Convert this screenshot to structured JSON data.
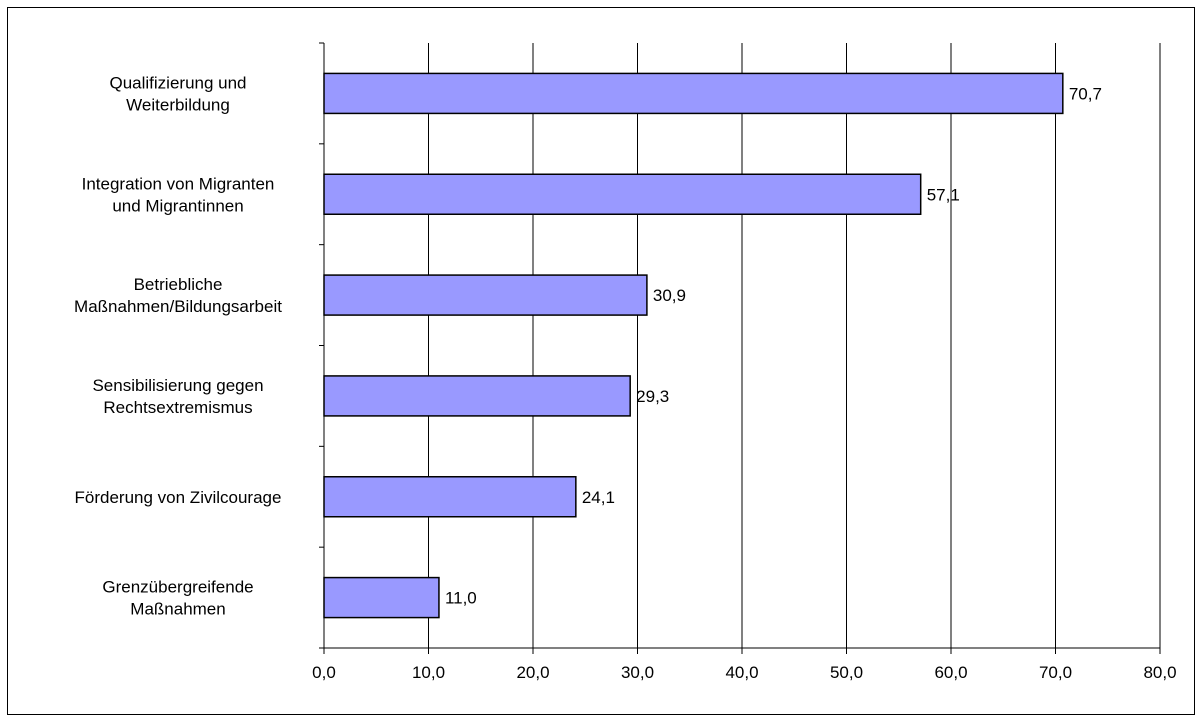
{
  "chart_data": {
    "type": "bar",
    "orientation": "horizontal",
    "categories": [
      [
        "Qualifizierung und",
        "Weiterbildung"
      ],
      [
        "Integration von Migranten",
        "und Migrantinnen"
      ],
      [
        "Betriebliche",
        "Maßnahmen/Bildungsarbeit"
      ],
      [
        "Sensibilisierung gegen",
        "Rechtsextremismus"
      ],
      [
        "Förderung von Zivilcourage"
      ],
      [
        "Grenzübergreifende",
        "Maßnahmen"
      ]
    ],
    "values": [
      70.7,
      57.1,
      30.9,
      29.3,
      24.1,
      11.0
    ],
    "value_labels": [
      "70,7",
      "57,1",
      "30,9",
      "29,3",
      "24,1",
      "11,0"
    ],
    "xlim": [
      0,
      80
    ],
    "xticks": [
      0,
      10,
      20,
      30,
      40,
      50,
      60,
      70,
      80
    ],
    "xtick_labels": [
      "0,0",
      "10,0",
      "20,0",
      "30,0",
      "40,0",
      "50,0",
      "60,0",
      "70,0",
      "80,0"
    ],
    "grid": "vertical",
    "legend": "none",
    "title": "",
    "xlabel": "",
    "ylabel": "",
    "colors": {
      "bar_fill": "#9999ff",
      "bar_stroke": "#000000",
      "grid": "#000000"
    }
  }
}
